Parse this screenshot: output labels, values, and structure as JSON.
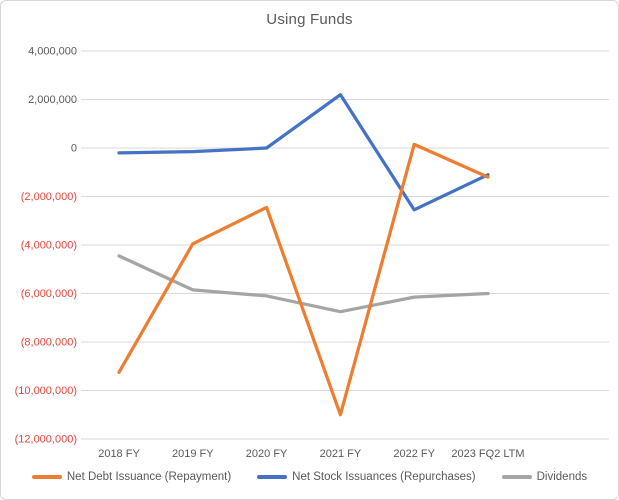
{
  "chart_data": {
    "type": "line",
    "title": "Using Funds",
    "categories": [
      "2018 FY",
      "2019 FY",
      "2020 FY",
      "2021 FY",
      "2022 FY",
      "2023 FQ2 LTM"
    ],
    "series": [
      {
        "name": "Net Debt Issuance (Repayment)",
        "color": "#ED7D31",
        "values": [
          -9250000,
          -3950000,
          -2450000,
          -11000000,
          150000,
          -1200000
        ]
      },
      {
        "name": "Net Stock Issuances (Repurchases)",
        "color": "#4472C4",
        "values": [
          -200000,
          -150000,
          0,
          2200000,
          -2550000,
          -1100000
        ]
      },
      {
        "name": "Dividends",
        "color": "#A5A5A5",
        "values": [
          -4450000,
          -5850000,
          -6100000,
          -6750000,
          -6150000,
          -6000000
        ]
      }
    ],
    "y_axis": {
      "max": 4000000,
      "min": -12000000,
      "step": 2000000,
      "tick_labels": [
        "4,000,000",
        "2,000,000",
        "0",
        "(2,000,000)",
        "(4,000,000)",
        "(6,000,000)",
        "(8,000,000)",
        "(10,000,000)",
        "(12,000,000)"
      ]
    },
    "xlabel": "",
    "ylabel": "",
    "grid": true,
    "legend_position": "bottom",
    "colors": {
      "grid_line": "#D9D9D9",
      "axis_text": "#595959",
      "negative_tick_text": "#E8453C",
      "title_text": "#595959",
      "background": "#FFFFFF",
      "frame_border": "#D6D6D6"
    }
  }
}
